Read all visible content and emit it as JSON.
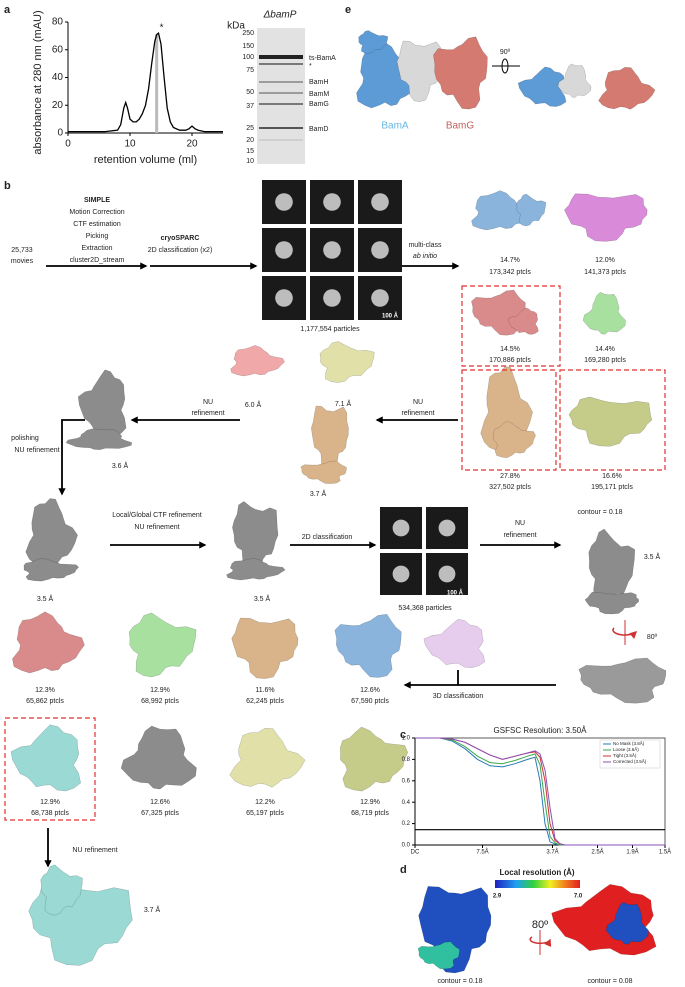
{
  "panels": [
    "a",
    "b",
    "c",
    "d",
    "e"
  ],
  "chart_data": [
    {
      "type": "line",
      "xlabel": "retention volume (ml)",
      "ylabel": "absorbance at 280 nm (mAU)",
      "x": [
        0,
        2,
        4,
        6,
        8,
        8.5,
        9,
        9.3,
        9.6,
        10,
        10.5,
        11,
        11.5,
        12,
        12.5,
        13,
        13.5,
        14,
        14.3,
        14.6,
        15,
        15.5,
        16,
        16.5,
        17,
        18,
        19,
        19.5,
        20,
        20.5,
        21,
        22,
        24,
        25
      ],
      "values": [
        1,
        1,
        1,
        1,
        2,
        6,
        18,
        22,
        18,
        10,
        8,
        8,
        10,
        14,
        20,
        32,
        50,
        66,
        71,
        72,
        64,
        40,
        18,
        8,
        4,
        2,
        2,
        3,
        5,
        3,
        2,
        1,
        1,
        1
      ],
      "color": "#000000",
      "highlight_x": 14.3,
      "highlight_color": "#bbbbbb",
      "annotation": "*",
      "xlim": [
        0,
        25
      ],
      "xticks": [
        0,
        10,
        20
      ],
      "ylim": [
        0,
        80
      ],
      "yticks": [
        0,
        20,
        40,
        60,
        80
      ]
    },
    {
      "type": "line",
      "title": "GSFSC Resolution: 3.50Å",
      "x": [
        0,
        0.05,
        0.1,
        0.15,
        0.2,
        0.25,
        0.3,
        0.35,
        0.4,
        0.45,
        0.48,
        0.5,
        0.52,
        0.54,
        0.56,
        0.58,
        0.6,
        0.7,
        0.8,
        0.9,
        1.0
      ],
      "series": [
        {
          "name": "No Mask (3.8Å)",
          "color": "#2a7ab8",
          "values": [
            1,
            1,
            1,
            0.97,
            0.9,
            0.8,
            0.74,
            0.73,
            0.76,
            0.8,
            0.82,
            0.6,
            0.2,
            0.03,
            0.01,
            0,
            0,
            0,
            0,
            0,
            0
          ]
        },
        {
          "name": "Loose (3.6Å)",
          "color": "#3aa84a",
          "values": [
            1,
            1,
            1,
            0.98,
            0.92,
            0.83,
            0.77,
            0.76,
            0.79,
            0.83,
            0.85,
            0.75,
            0.4,
            0.08,
            0.02,
            0,
            0,
            0,
            0,
            0,
            0
          ]
        },
        {
          "name": "Tight (3.5Å)",
          "color": "#d03030",
          "values": [
            1,
            1,
            1,
            0.99,
            0.96,
            0.9,
            0.84,
            0.8,
            0.83,
            0.86,
            0.87,
            0.82,
            0.6,
            0.2,
            0.04,
            0.01,
            0,
            0,
            0,
            0,
            0
          ]
        },
        {
          "name": "Corrected (3.5Å)",
          "color": "#8a50b8",
          "values": [
            1,
            1,
            1,
            0.99,
            0.96,
            0.9,
            0.84,
            0.8,
            0.83,
            0.86,
            0.88,
            0.85,
            0.7,
            0.35,
            0.06,
            0.01,
            0,
            0,
            0,
            0,
            0
          ]
        }
      ],
      "threshold": 0.143,
      "legend": "upper right",
      "xlim": [
        0,
        1
      ],
      "xticks": [
        {
          "value": 0,
          "label": "DC"
        },
        {
          "value": 0.27,
          "label": "7.5Å"
        },
        {
          "value": 0.55,
          "label": "3.7Å"
        },
        {
          "value": 0.73,
          "label": "2.5Å"
        },
        {
          "value": 0.87,
          "label": "1.9Å"
        },
        {
          "value": 1,
          "label": "1.5Å"
        }
      ],
      "ylim": [
        0,
        1
      ],
      "yticks": [
        {
          "value": 0,
          "label": "0.0"
        },
        0.2,
        0.4,
        0.6,
        0.8,
        {
          "value": 1,
          "label": "1.0"
        }
      ]
    }
  ],
  "gel": {
    "title": "ΔbamP",
    "unit": "kDa",
    "markers": [
      "250",
      "150",
      "100",
      "75",
      "50",
      "37",
      "25",
      "20",
      "15",
      "10"
    ],
    "bands": [
      "ts-BamA",
      "*",
      "BamH",
      "BamM",
      "BamG",
      "BamD"
    ]
  },
  "structure": {
    "labels": [
      "BamA",
      "BamG"
    ],
    "rotation": "90º"
  },
  "workflow": {
    "simple_title": "SIMPLE",
    "simple_steps": [
      "Motion Correction",
      "CTF estimation",
      "Picking",
      "Extraction",
      "cluster2D_stream"
    ],
    "movies_count": "25,733",
    "movies": "movies",
    "cryosparc": "cryoSPARC",
    "classification_2d_x2": "2D classification (x2)",
    "particles_1": "1,177,554 particles",
    "scale_bar": "100 Å",
    "multiclass": "multi-class",
    "ab_initio": "ab initio",
    "nu": "NU",
    "refinement": "refinement",
    "ab_initio_classes": [
      {
        "percent": "14.7%",
        "count": "173,342 ptcls"
      },
      {
        "percent": "12.0%",
        "count": "141,373 ptcls"
      },
      {
        "percent": "14.5%",
        "count": "170,886 ptcls"
      },
      {
        "percent": "14.4%",
        "count": "169,280 ptcls"
      },
      {
        "percent": "27.8%",
        "count": "327,502 ptcls"
      },
      {
        "percent": "16.6%",
        "count": "195,171 ptcls"
      }
    ],
    "res_60": "6.0 Å",
    "res_71": "7.1 Å",
    "res_37": "3.7 Å",
    "res_36": "3.6 Å",
    "polishing": "polishing",
    "nu_refinement": "NU refinement",
    "res_35": "3.5 Å",
    "ctf": "Local/Global CTF refinement",
    "classification_2d": "2D classification",
    "particles_2": "534,368 particles",
    "contour": "contour = 0.18",
    "rotation_80": "80º",
    "classification_3d": "3D classification",
    "classes_3d": [
      {
        "percent": "12.3%",
        "count": "65,862 ptcls"
      },
      {
        "percent": "12.9%",
        "count": "68,992 ptcls"
      },
      {
        "percent": "11.6%",
        "count": "62,245 ptcls"
      },
      {
        "percent": "12.6%",
        "count": "67,590 ptcls"
      },
      {
        "percent": "12.9%",
        "count": "68,738 ptcls"
      },
      {
        "percent": "12.6%",
        "count": "67,325 ptcls"
      },
      {
        "percent": "12.2%",
        "count": "65,197 ptcls"
      },
      {
        "percent": "12.9%",
        "count": "68,719 ptcls"
      }
    ]
  },
  "local_resolution": {
    "title": "Local resolution (Å)",
    "min": "2.9",
    "max": "7.0",
    "rotation": "80º",
    "contours": [
      "contour = 0.18",
      "contour = 0.08"
    ]
  }
}
